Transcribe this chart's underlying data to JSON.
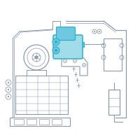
{
  "bg_color": "#ffffff",
  "line_color": "#8a9aaa",
  "highlight_color": "#2ab0c8",
  "highlight_fill": "#a0dcea",
  "highlight_fill2": "#70c8e0",
  "figsize": [
    2.0,
    2.0
  ],
  "dpi": 100
}
